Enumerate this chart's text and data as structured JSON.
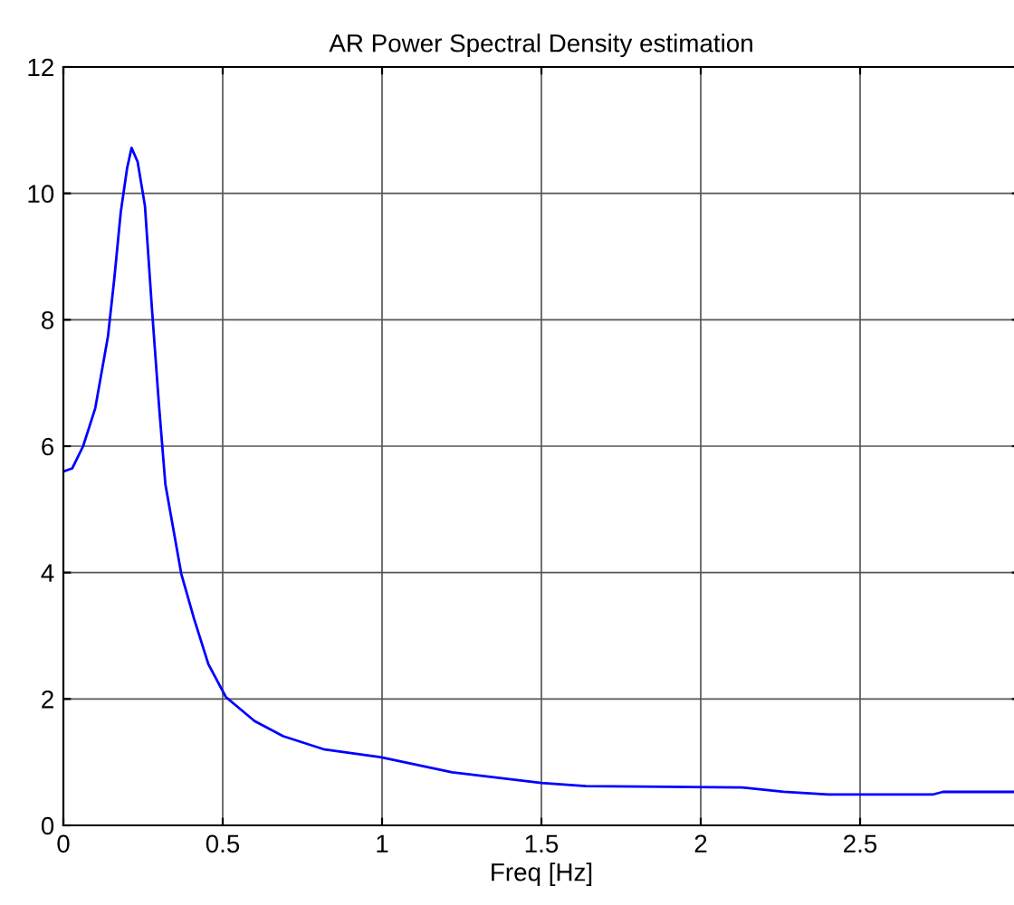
{
  "chart_data": {
    "type": "line",
    "title": "AR Power Spectral Density estimation",
    "xlabel": "Freq [Hz]",
    "series": [
      {
        "color": "#0000ff",
        "x": [
          0,
          0.028,
          0.062,
          0.1,
          0.14,
          0.16,
          0.18,
          0.2,
          0.214,
          0.233,
          0.256,
          0.278,
          0.3,
          0.32,
          0.37,
          0.41,
          0.455,
          0.51,
          0.6,
          0.69,
          0.82,
          0.995,
          1.22,
          1.5,
          1.64,
          2.13,
          2.26,
          2.4,
          2.73,
          2.76,
          2.98
        ],
        "values": [
          5.6,
          5.65,
          6.0,
          6.6,
          7.74,
          8.66,
          9.7,
          10.4,
          10.72,
          10.5,
          9.8,
          8.17,
          6.65,
          5.4,
          3.98,
          3.27,
          2.55,
          2.03,
          1.65,
          1.41,
          1.2,
          1.08,
          0.84,
          0.67,
          0.62,
          0.6,
          0.53,
          0.49,
          0.49,
          0.53,
          0.53
        ]
      }
    ],
    "xlim": [
      0,
      3
    ],
    "ylim": [
      0,
      12
    ],
    "xticks": [
      0,
      0.5,
      1,
      1.5,
      2,
      2.5
    ],
    "yticks": [
      0,
      2,
      4,
      6,
      8,
      10,
      12
    ],
    "grid": true,
    "marker": "none",
    "line_style": "solid",
    "legend": false
  }
}
